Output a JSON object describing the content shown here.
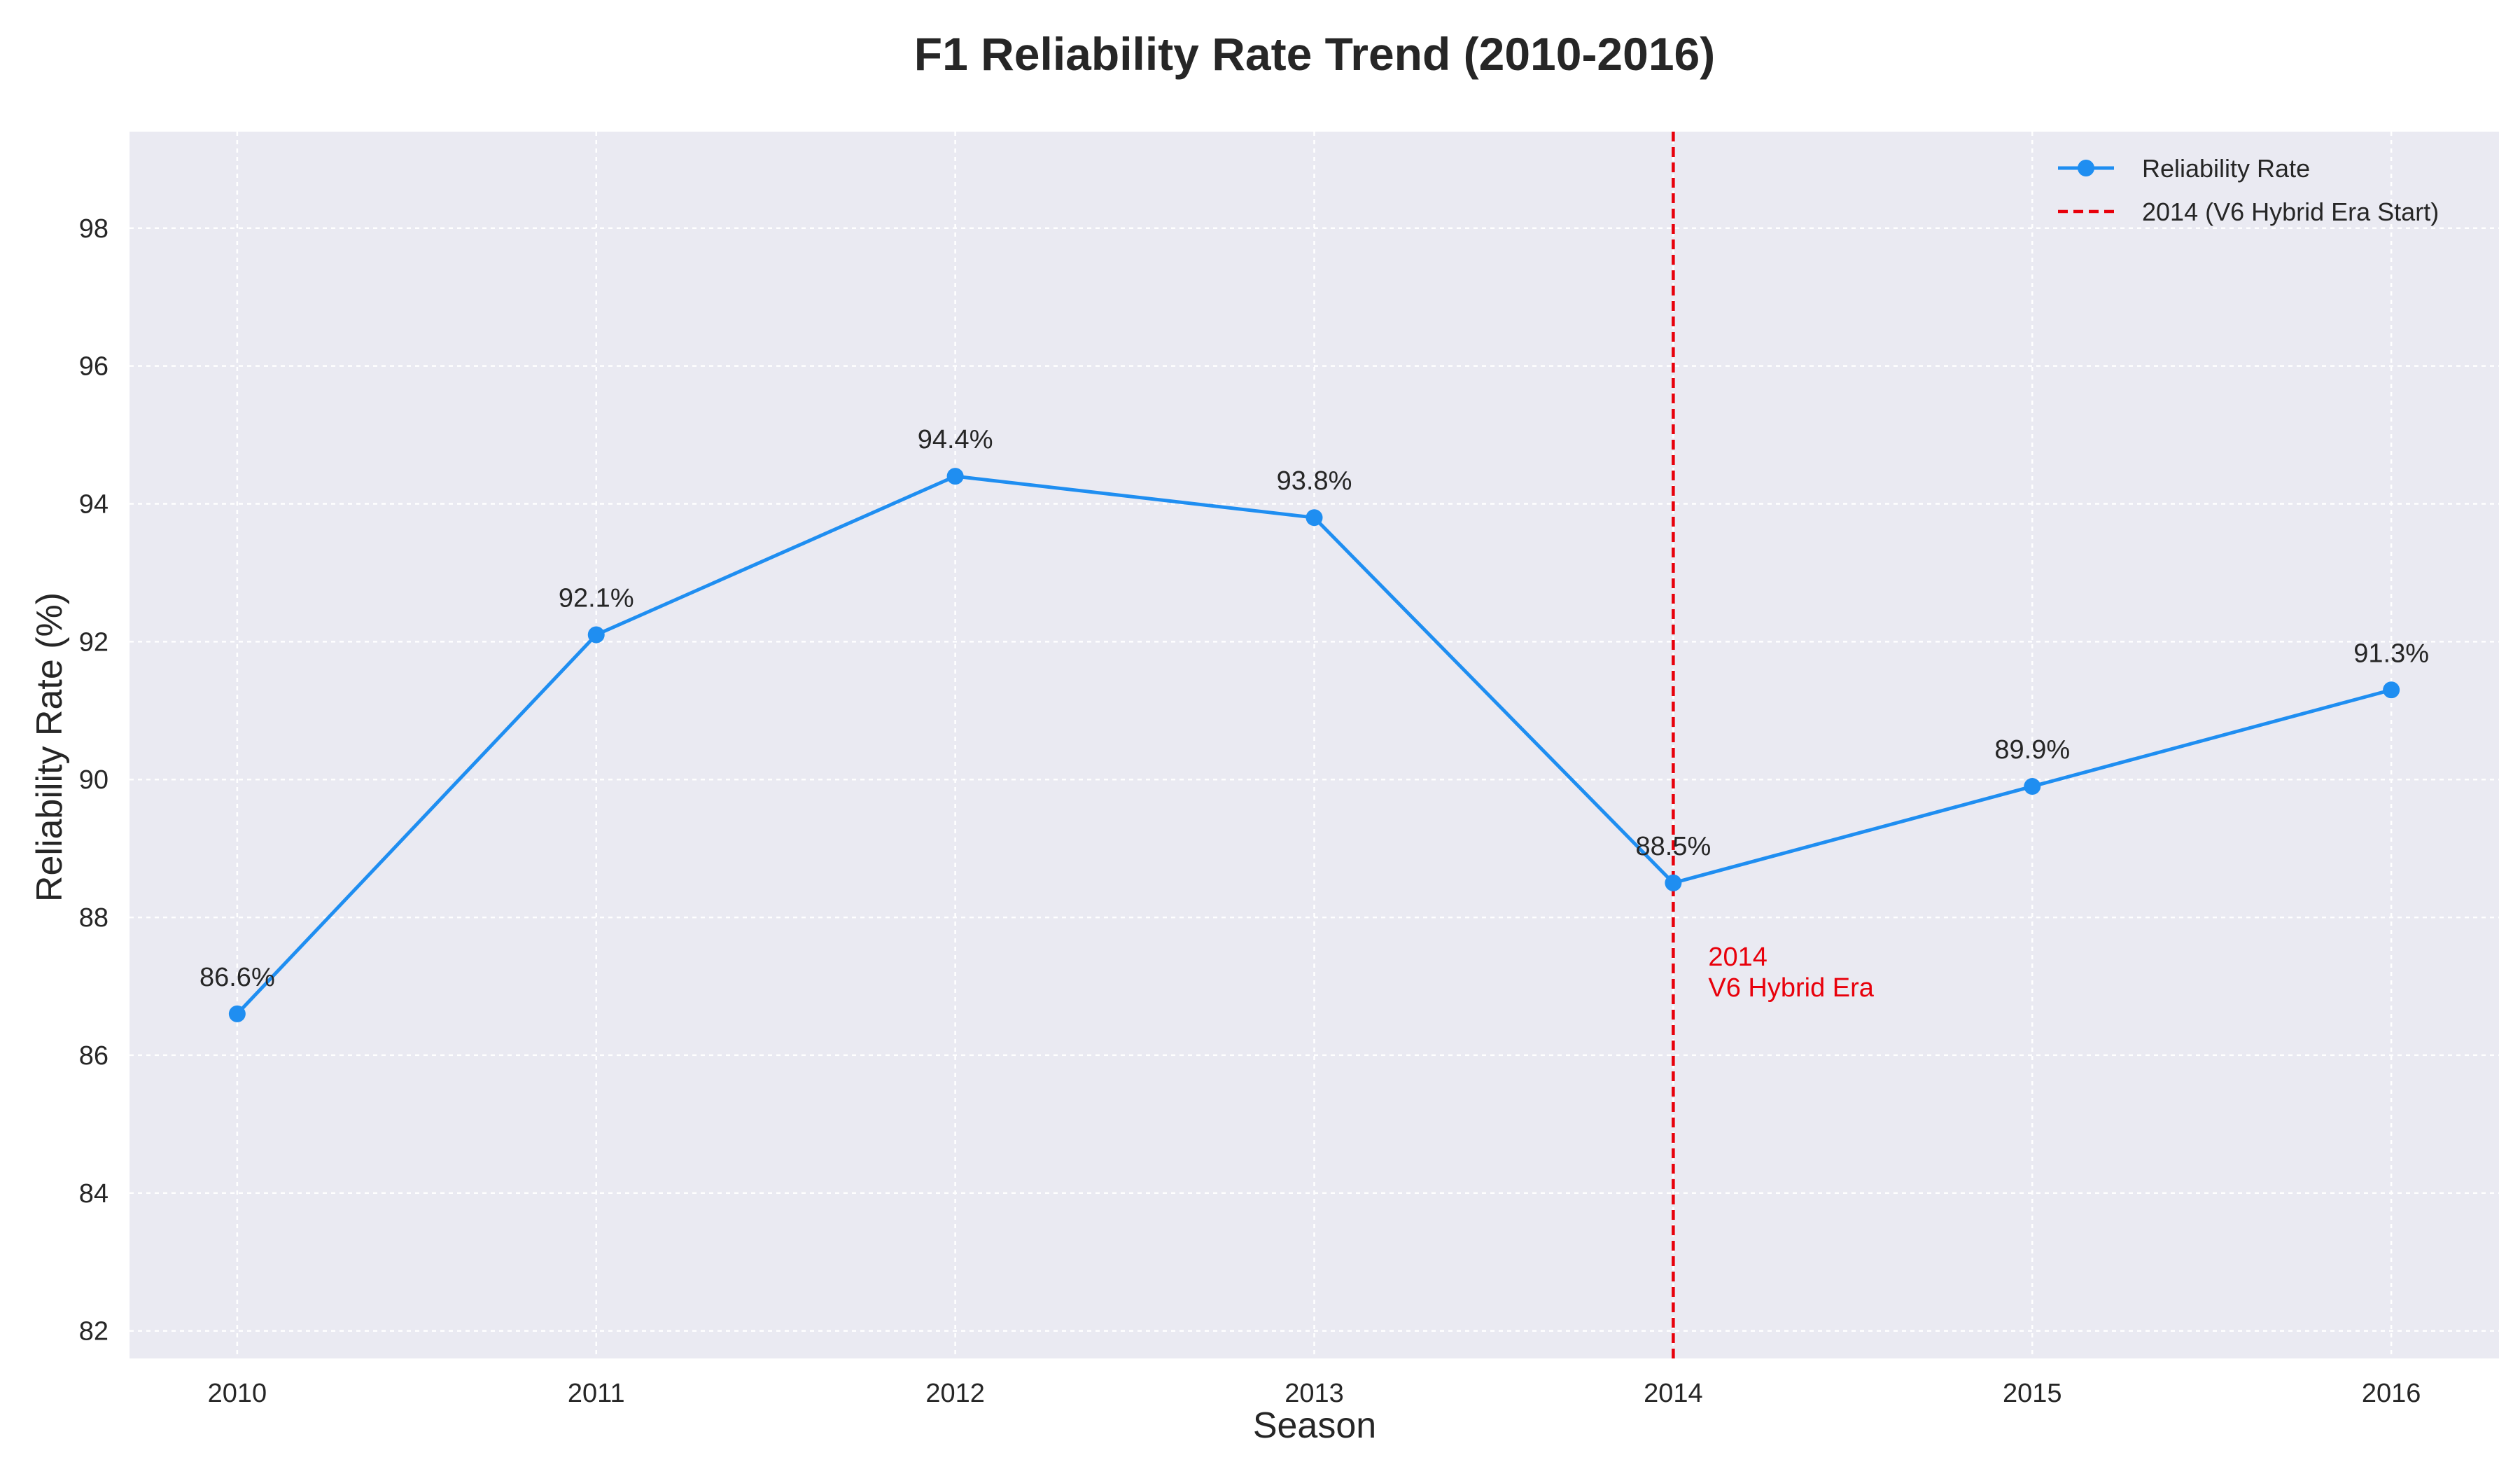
{
  "chart_data": {
    "type": "line",
    "title": "F1 Reliability Rate Trend (2010-2016)",
    "xlabel": "Season",
    "ylabel": "Reliability Rate (%)",
    "categories": [
      "2010",
      "2011",
      "2012",
      "2013",
      "2014",
      "2015",
      "2016"
    ],
    "x": [
      2010,
      2011,
      2012,
      2013,
      2014,
      2015,
      2016
    ],
    "series": [
      {
        "name": "Reliability Rate",
        "values": [
          86.6,
          92.1,
          94.4,
          93.8,
          88.5,
          89.9,
          91.3
        ],
        "color": "#1f8ef1"
      }
    ],
    "data_labels": [
      "86.6%",
      "92.1%",
      "94.4%",
      "93.8%",
      "88.5%",
      "89.9%",
      "91.3%"
    ],
    "yticks": [
      82,
      84,
      86,
      88,
      90,
      92,
      94,
      96,
      98
    ],
    "ytick_labels": [
      "82",
      "84",
      "86",
      "88",
      "90",
      "92",
      "94",
      "96",
      "98"
    ],
    "ylim": [
      81.6,
      99.4
    ],
    "xlim": [
      2009.7,
      2016.3
    ],
    "grid": true,
    "legend_position": "top-right",
    "reference_line": {
      "x": 2014,
      "label": "2014 (V6 Hybrid Era Start)",
      "color": "#e8000b",
      "annotation_lines": [
        "2014",
        "V6 Hybrid Era"
      ],
      "annotation_y": 87.3
    },
    "colors": {
      "plot_background": "#eaeaf2",
      "grid": "#ffffff",
      "text": "#262626",
      "reference": "#e8000b",
      "series": "#1f8ef1"
    }
  }
}
